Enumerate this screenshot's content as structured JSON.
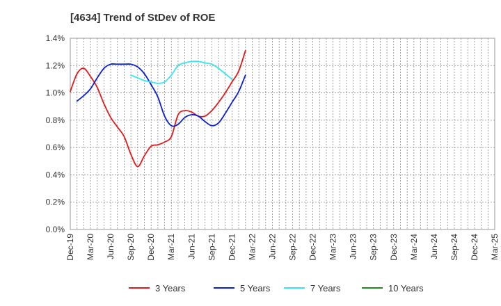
{
  "chart_data": {
    "type": "line",
    "title": "[4634]  Trend of StDev of ROE",
    "xlabel": "",
    "ylabel": "",
    "ylim": [
      0,
      1.4
    ],
    "y_ticks": [
      "0.0%",
      "0.2%",
      "0.4%",
      "0.6%",
      "0.8%",
      "1.0%",
      "1.2%",
      "1.4%"
    ],
    "x_ticks": [
      "Dec-19",
      "Mar-20",
      "Jun-20",
      "Sep-20",
      "Dec-20",
      "Mar-21",
      "Jun-21",
      "Sep-21",
      "Dec-21",
      "Mar-22",
      "Jun-22",
      "Sep-22",
      "Dec-22",
      "Mar-23",
      "Jun-23",
      "Sep-23",
      "Dec-23",
      "Mar-24",
      "Jun-24",
      "Sep-24",
      "Dec-24",
      "Mar-25"
    ],
    "grid": true,
    "legend_position": "bottom",
    "series": [
      {
        "name": "3 Years",
        "color": "#e31a1c",
        "points": [
          [
            0,
            1.01
          ],
          [
            1,
            1.14
          ],
          [
            2,
            1.18
          ],
          [
            3,
            1.12
          ],
          [
            4,
            1.04
          ],
          [
            5,
            0.92
          ],
          [
            6,
            0.82
          ],
          [
            7,
            0.75
          ],
          [
            8,
            0.68
          ],
          [
            9,
            0.55
          ],
          [
            10,
            0.46
          ],
          [
            11,
            0.54
          ],
          [
            12,
            0.61
          ],
          [
            13,
            0.62
          ],
          [
            14,
            0.64
          ],
          [
            15,
            0.68
          ],
          [
            16,
            0.84
          ],
          [
            17,
            0.87
          ],
          [
            18,
            0.86
          ],
          [
            19,
            0.83
          ],
          [
            20,
            0.83
          ],
          [
            21,
            0.87
          ],
          [
            22,
            0.93
          ],
          [
            23,
            1.0
          ],
          [
            24,
            1.08
          ],
          [
            25,
            1.16
          ],
          [
            26,
            1.31
          ]
        ]
      },
      {
        "name": "5 Years",
        "color": "#0a1ed2",
        "points": [
          [
            1,
            0.94
          ],
          [
            2,
            0.98
          ],
          [
            3,
            1.03
          ],
          [
            4,
            1.11
          ],
          [
            5,
            1.18
          ],
          [
            6,
            1.21
          ],
          [
            7,
            1.21
          ],
          [
            8,
            1.21
          ],
          [
            9,
            1.21
          ],
          [
            10,
            1.19
          ],
          [
            11,
            1.14
          ],
          [
            12,
            1.06
          ],
          [
            13,
            0.97
          ],
          [
            14,
            0.83
          ],
          [
            15,
            0.76
          ],
          [
            16,
            0.77
          ],
          [
            17,
            0.82
          ],
          [
            18,
            0.84
          ],
          [
            19,
            0.83
          ],
          [
            20,
            0.79
          ],
          [
            21,
            0.76
          ],
          [
            22,
            0.78
          ],
          [
            23,
            0.85
          ],
          [
            24,
            0.93
          ],
          [
            25,
            1.01
          ],
          [
            26,
            1.13
          ]
        ]
      },
      {
        "name": "7 Years",
        "color": "#33e6f0",
        "points": [
          [
            9,
            1.13
          ],
          [
            10,
            1.11
          ],
          [
            11,
            1.09
          ],
          [
            12,
            1.08
          ],
          [
            13,
            1.07
          ],
          [
            14,
            1.08
          ],
          [
            15,
            1.13
          ],
          [
            16,
            1.2
          ],
          [
            17,
            1.22
          ],
          [
            18,
            1.23
          ],
          [
            19,
            1.23
          ],
          [
            20,
            1.22
          ],
          [
            21,
            1.21
          ],
          [
            22,
            1.18
          ],
          [
            23,
            1.14
          ],
          [
            24,
            1.1
          ]
        ]
      },
      {
        "name": "10 Years",
        "color": "#1e8c1e",
        "points": []
      }
    ]
  }
}
